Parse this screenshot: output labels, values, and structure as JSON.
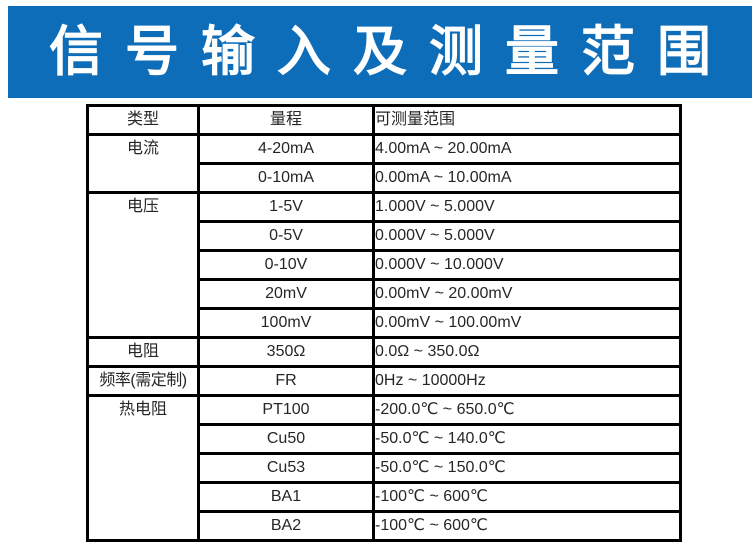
{
  "banner": {
    "title": "信号输入及测量范围",
    "bg_color": "#0e6db8",
    "text_color": "#ffffff"
  },
  "table": {
    "headers": {
      "type": "类型",
      "range": "量程",
      "measurable": "可测量范围"
    },
    "rows": [
      {
        "type": "电流",
        "range": "4-20mA",
        "value": "4.00mA ~ 20.00mA"
      },
      {
        "range": "0-10mA",
        "value": "0.00mA ~ 10.00mA"
      },
      {
        "type": "电压",
        "range": "1-5V",
        "value": "1.000V ~ 5.000V"
      },
      {
        "range": "0-5V",
        "value": "0.000V ~ 5.000V"
      },
      {
        "range": "0-10V",
        "value": "0.000V ~ 10.000V"
      },
      {
        "range": "20mV",
        "value": "0.00mV ~ 20.00mV"
      },
      {
        "range": "100mV",
        "value": "0.00mV ~ 100.00mV"
      },
      {
        "type": "电阻",
        "range": "350Ω",
        "value": "0.0Ω ~ 350.0Ω"
      },
      {
        "type": "频率(需定制)",
        "range": "FR",
        "value": "0Hz ~ 10000Hz"
      },
      {
        "type": "热电阻",
        "range": "PT100",
        "value": "-200.0℃ ~ 650.0℃"
      },
      {
        "range": "Cu50",
        "value": "-50.0℃ ~ 140.0℃"
      },
      {
        "range": "Cu53",
        "value": "-50.0℃ ~ 150.0℃"
      },
      {
        "range": "BA1",
        "value": "-100℃ ~ 600℃"
      },
      {
        "range": "BA2",
        "value": "-100℃ ~ 600℃"
      }
    ]
  }
}
